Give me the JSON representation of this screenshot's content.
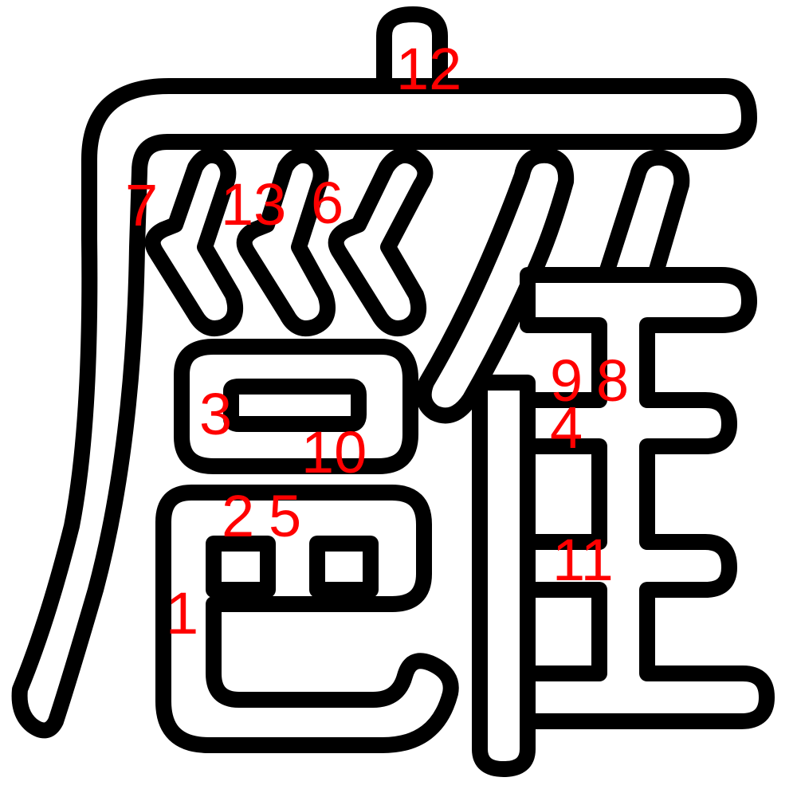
{
  "colors": {
    "background": "#ffffff",
    "outline": "#000000",
    "fill": "#ffffff",
    "label": "#ff0000"
  },
  "labels": {
    "l1": "1",
    "l2": "2",
    "l3": "3",
    "l4": "4",
    "l5": "5",
    "l6": "6",
    "l7": "7",
    "l8": "8",
    "l9": "9",
    "l10": "10",
    "l11": "11",
    "l12": "12",
    "l13": "13"
  }
}
